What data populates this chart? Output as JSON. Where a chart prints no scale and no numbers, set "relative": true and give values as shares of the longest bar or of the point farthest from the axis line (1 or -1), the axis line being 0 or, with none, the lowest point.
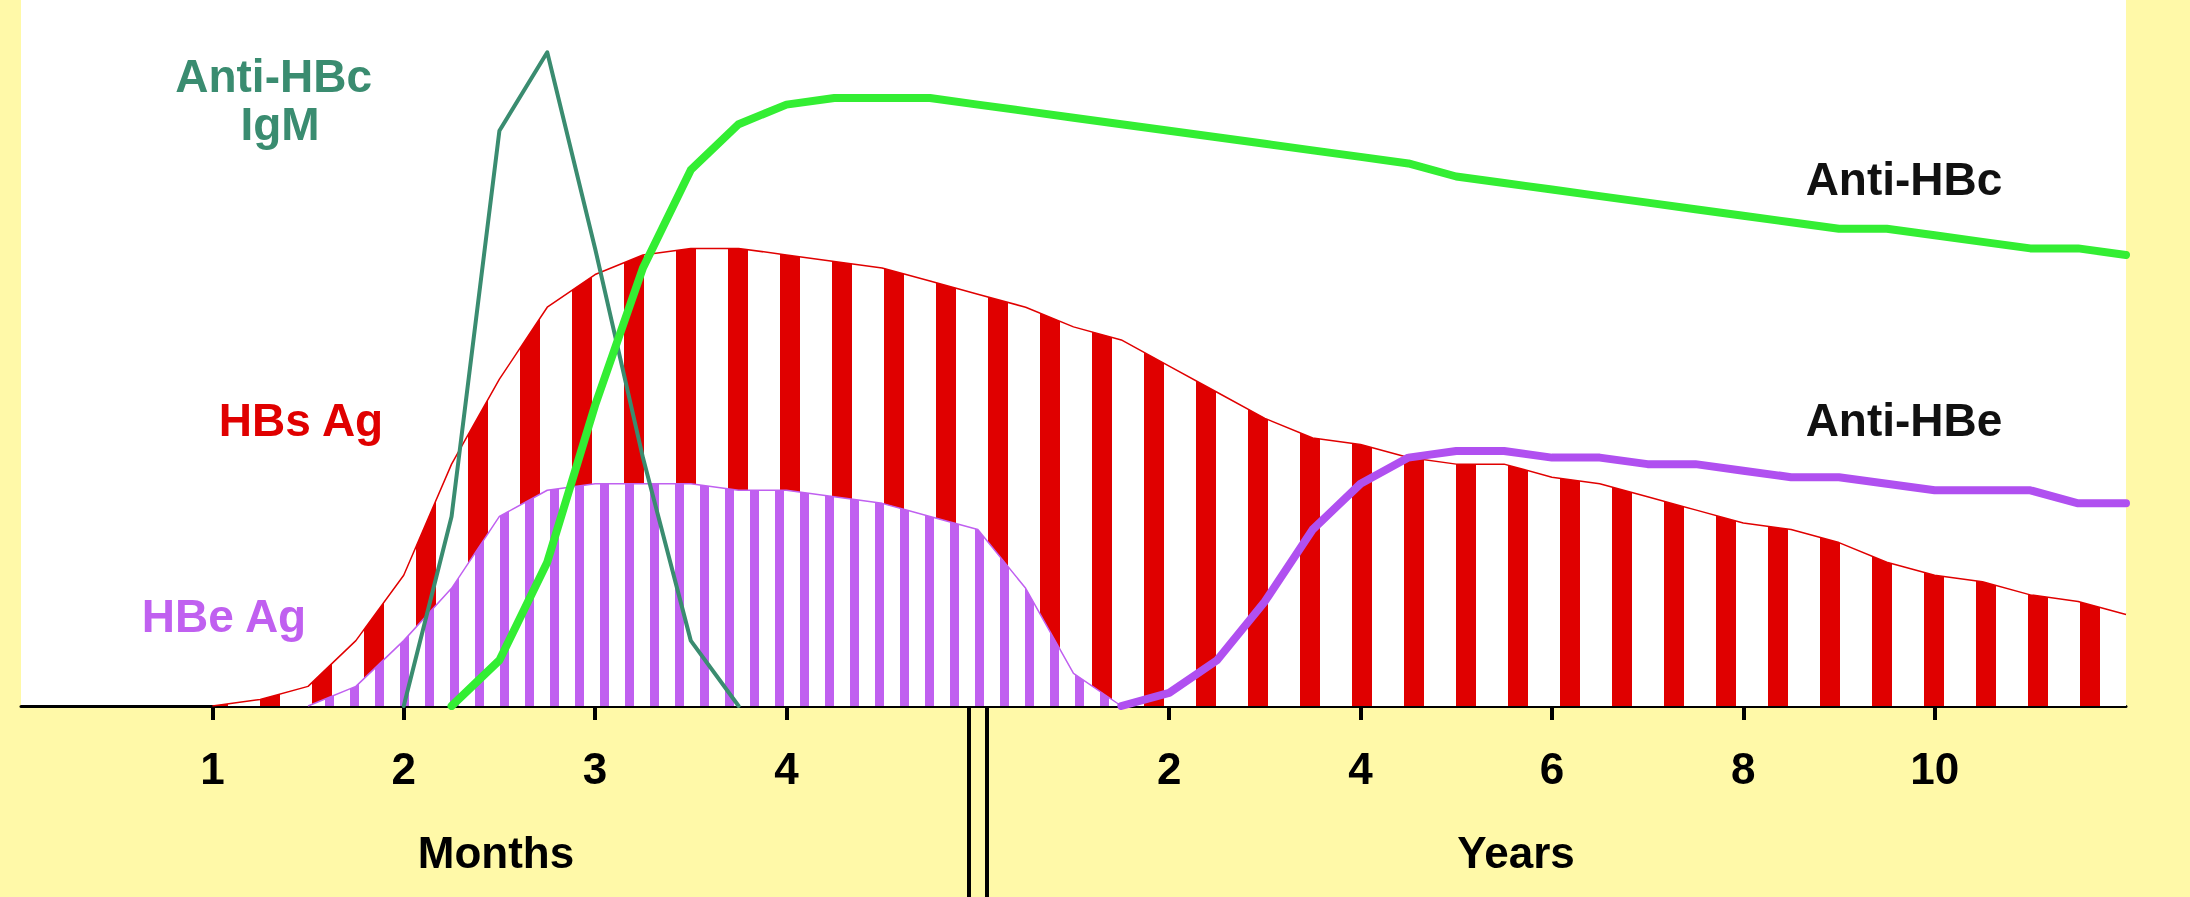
{
  "chart_data": {
    "type": "line",
    "relative": true,
    "legend": false,
    "grid": false,
    "marker": "none",
    "line_style": "solid",
    "categories": [
      null,
      null,
      null,
      null,
      "1",
      null,
      null,
      null,
      "2",
      null,
      null,
      null,
      "3",
      null,
      null,
      null,
      "4",
      null,
      null,
      null,
      null,
      null,
      null,
      null,
      "2",
      null,
      null,
      null,
      "4",
      null,
      null,
      null,
      "6",
      null,
      null,
      null,
      "8",
      null,
      null,
      null,
      "10",
      null,
      null,
      null,
      null
    ],
    "annotations": [
      "Months",
      "Years"
    ],
    "series": [
      {
        "name": "HBs Ag",
        "type": "area",
        "color": "#e00000",
        "values": [
          null,
          null,
          null,
          null,
          0,
          0.01,
          0.03,
          0.1,
          0.2,
          0.37,
          0.5,
          0.61,
          0.66,
          0.69,
          0.7,
          0.7,
          0.69,
          0.68,
          0.67,
          0.65,
          0.63,
          0.61,
          0.58,
          0.56,
          0.52,
          0.48,
          0.44,
          0.41,
          0.4,
          0.38,
          0.37,
          0.37,
          0.35,
          0.34,
          0.32,
          0.3,
          0.28,
          0.27,
          0.25,
          0.22,
          0.2,
          0.19,
          0.17,
          0.16,
          0.14
        ]
      },
      {
        "name": "HBe Ag",
        "type": "area",
        "color": "#c060f0",
        "values": [
          null,
          null,
          null,
          null,
          null,
          null,
          0,
          0.03,
          0.1,
          0.18,
          0.29,
          0.33,
          0.34,
          0.34,
          0.34,
          0.33,
          0.33,
          0.32,
          0.31,
          0.29,
          0.27,
          0.18,
          0.05,
          0,
          null,
          null,
          null,
          null,
          null,
          null,
          null,
          null,
          null,
          null,
          null,
          null,
          null,
          null,
          null,
          null,
          null,
          null,
          null,
          null,
          null
        ]
      },
      {
        "name": "Anti-HBc IgM",
        "type": "line",
        "color": "#3a8c70",
        "values": [
          null,
          null,
          null,
          null,
          null,
          null,
          null,
          null,
          0,
          0.29,
          0.88,
          1,
          0.7,
          0.38,
          0.1,
          0,
          null,
          null,
          null,
          null,
          null,
          null,
          null,
          null,
          null,
          null,
          null,
          null,
          null,
          null,
          null,
          null,
          null,
          null,
          null,
          null,
          null,
          null,
          null,
          null,
          null,
          null,
          null,
          null,
          null
        ]
      },
      {
        "name": "Anti-HBc",
        "type": "line",
        "color": "#33ee33",
        "values": [
          null,
          null,
          null,
          null,
          null,
          null,
          null,
          null,
          null,
          0,
          0.07,
          0.22,
          0.46,
          0.67,
          0.82,
          0.89,
          0.92,
          0.93,
          0.93,
          0.93,
          0.92,
          0.91,
          0.9,
          0.89,
          0.88,
          0.87,
          0.86,
          0.85,
          0.84,
          0.83,
          0.81,
          0.8,
          0.79,
          0.78,
          0.77,
          0.76,
          0.75,
          0.74,
          0.73,
          0.73,
          0.72,
          0.71,
          0.7,
          0.7,
          0.69
        ]
      },
      {
        "name": "Anti-HBe",
        "type": "line",
        "color": "#b050f0",
        "values": [
          null,
          null,
          null,
          null,
          null,
          null,
          null,
          null,
          null,
          null,
          null,
          null,
          null,
          null,
          null,
          null,
          null,
          null,
          null,
          null,
          null,
          null,
          null,
          0,
          0.02,
          0.07,
          0.16,
          0.27,
          0.34,
          0.38,
          0.39,
          0.39,
          0.38,
          0.38,
          0.37,
          0.37,
          0.36,
          0.35,
          0.35,
          0.34,
          0.33,
          0.33,
          0.33,
          0.31,
          0.31
        ]
      }
    ]
  }
}
